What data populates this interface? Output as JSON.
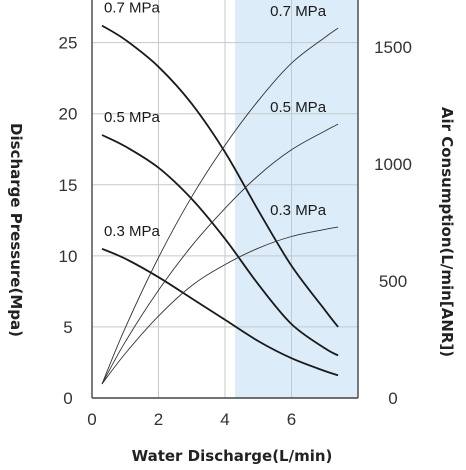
{
  "chart_data": {
    "type": "line",
    "xlabel": "Water Discharge(L/min)",
    "ylabel_left": "Discharge Pressure(Mpa)",
    "ylabel_right": "Air Consumption(L/min[ANR])",
    "xlim": [
      0,
      8
    ],
    "ylim_left": [
      0,
      28
    ],
    "ylim_right": [
      0,
      1700
    ],
    "x_ticks": [
      "0",
      "2",
      "4",
      "6"
    ],
    "y_left_ticks": [
      "0",
      "5",
      "10",
      "15",
      "20",
      "25"
    ],
    "y_right_ticks": [
      "0",
      "500",
      "1000",
      "1500"
    ],
    "grid": true,
    "highlight_band": {
      "x_from": 4.3,
      "x_to": 8,
      "color": "#dcedf9"
    },
    "pressure_series": [
      {
        "name": "0.7 MPa",
        "axis": "left",
        "x": [
          0.3,
          1,
          2,
          3,
          4,
          5,
          6,
          7,
          7.4
        ],
        "y": [
          26.2,
          25.2,
          23.3,
          20.7,
          17.3,
          13.2,
          9.3,
          6.2,
          5.0
        ]
      },
      {
        "name": "0.5 MPa",
        "axis": "left",
        "x": [
          0.3,
          1,
          2,
          3,
          4,
          5,
          6,
          7,
          7.4
        ],
        "y": [
          18.5,
          17.7,
          16.2,
          14.0,
          11.2,
          8.0,
          5.2,
          3.5,
          3.0
        ]
      },
      {
        "name": "0.3 MPa",
        "axis": "left",
        "x": [
          0.3,
          1,
          2,
          3,
          4,
          5,
          6,
          7,
          7.4
        ],
        "y": [
          10.5,
          9.8,
          8.5,
          7.0,
          5.5,
          4.0,
          2.8,
          1.9,
          1.6
        ]
      }
    ],
    "air_series": [
      {
        "name": "0.7 MPa",
        "axis": "right",
        "x": [
          0.3,
          1,
          2,
          3,
          4,
          5,
          6,
          7,
          7.4
        ],
        "y": [
          60,
          300,
          600,
          860,
          1080,
          1270,
          1430,
          1540,
          1580
        ]
      },
      {
        "name": "0.5 MPa",
        "axis": "right",
        "x": [
          0.3,
          1,
          2,
          3,
          4,
          5,
          6,
          7,
          7.4
        ],
        "y": [
          60,
          240,
          460,
          650,
          810,
          950,
          1060,
          1140,
          1170
        ]
      },
      {
        "name": "0.3 MPa",
        "axis": "right",
        "x": [
          0.3,
          1,
          2,
          3,
          4,
          5,
          6,
          7,
          7.4
        ],
        "y": [
          60,
          190,
          350,
          480,
          570,
          640,
          690,
          720,
          730
        ]
      }
    ]
  }
}
